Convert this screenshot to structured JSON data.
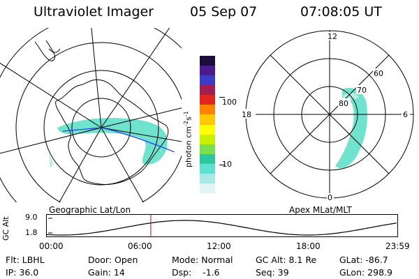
{
  "header": {
    "instrument": "Ultraviolet Imager",
    "date": "05 Sep 07",
    "time": "07:08:05 UT"
  },
  "colors": {
    "background": "#ffffff",
    "line": "#000000",
    "emission": "#5fe0c8",
    "emission_faint": "#b8efe4",
    "track": "#1e3cff",
    "time_marker": "#d00000"
  },
  "geo_panel": {
    "label": "Geographic Lat/Lon"
  },
  "mag_panel": {
    "label": "Apex MLat/MLT",
    "mlt_labels": {
      "top": "12",
      "left": "18",
      "right": "6",
      "bottom": "0"
    },
    "mlat_labels": [
      "60",
      "70",
      "80"
    ]
  },
  "colorbar": {
    "unit_main": "photon cm",
    "unit_exp1": "-2",
    "unit_s": "s",
    "unit_exp2": "-1",
    "tick_100": "100",
    "tick_10": "10",
    "scale": "log",
    "colors": [
      "#1a0f3a",
      "#4b1a8c",
      "#3c3cc8",
      "#a01e50",
      "#e1261e",
      "#ff8200",
      "#ffc800",
      "#ffff00",
      "#c8f000",
      "#78e050",
      "#2ec8a0",
      "#5fe0d2",
      "#a8e8e8",
      "#e0f4f4"
    ]
  },
  "orbit": {
    "ylabel": "GC Alt",
    "ymax": "9.0",
    "ymin": "1.8",
    "xticks": [
      "00:00",
      "06:00",
      "12:00",
      "18:00",
      "23:59"
    ],
    "current_time_hours": 7.135
  },
  "status": {
    "filter": "Flt: LBHL",
    "ip": "IP: 36.0",
    "door": "Door: Open",
    "gain": "Gain: 14",
    "mode": "Mode: Normal",
    "dsp": "Dsp:    -1.6",
    "gc_alt": "GC Alt: 8.1 Re",
    "seq": "Seq: 39",
    "glat": "GLat: -86.7",
    "glon": "GLon: 298.9"
  }
}
